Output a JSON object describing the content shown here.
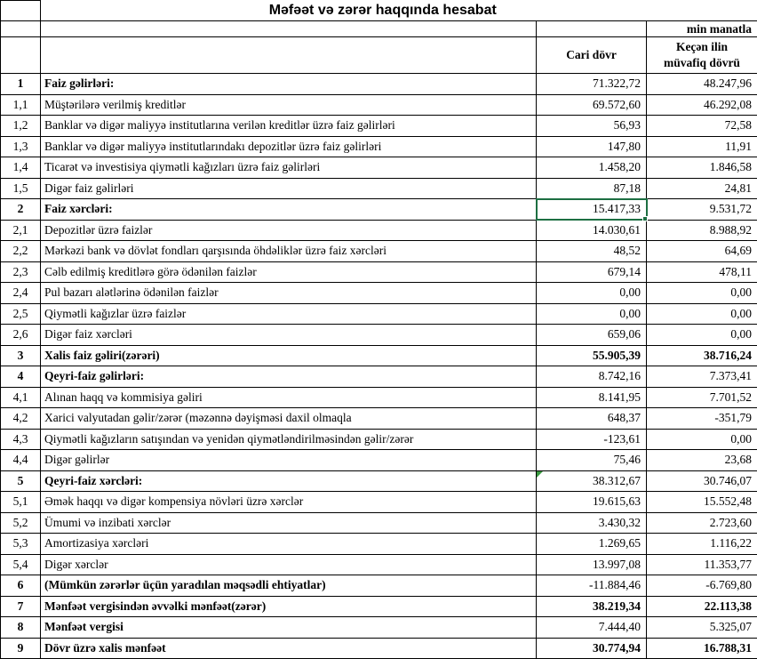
{
  "title": "Məfəət və zərər haqqında hesabat",
  "unit_label": "min manatla",
  "columns": {
    "current": "Cari dövr",
    "previous": "Keçən ilin müvafiq dövrü"
  },
  "colors": {
    "grid_border": "#000000",
    "selection_border": "#1d6f42",
    "flag_triangle": "#3a9a41",
    "background": "#ffffff",
    "text": "#000000"
  },
  "rows": [
    {
      "num": "1",
      "label": "Faiz gəlirləri:",
      "current": "71.322,72",
      "previous": "48.247,96",
      "bold": true
    },
    {
      "num": "1,1",
      "label": "Müştərilərə verilmiş kreditlər",
      "current": "69.572,60",
      "previous": "46.292,08"
    },
    {
      "num": "1,2",
      "label": "Banklar və digər maliyyə institutlarına verilən kreditlər üzrə faiz gəlirləri",
      "current": "56,93",
      "previous": "72,58"
    },
    {
      "num": "1,3",
      "label": "Banklar və digər maliyyə institutlarındakı depozitlər üzrə faiz gəlirləri",
      "current": "147,80",
      "previous": "11,91"
    },
    {
      "num": "1,4",
      "label": "Ticarət və investisiya qiymətli kağızları üzrə faiz gəlirləri",
      "current": "1.458,20",
      "previous": "1.846,58"
    },
    {
      "num": "1,5",
      "label": "Digər faiz gəlirləri",
      "current": "87,18",
      "previous": "24,81"
    },
    {
      "num": "2",
      "label": "Faiz xərcləri:",
      "current": "15.417,33",
      "previous": "9.531,72",
      "bold": true,
      "selected": true
    },
    {
      "num": "2,1",
      "label": "Depozitlər üzrə faizlər",
      "current": "14.030,61",
      "previous": "8.988,92"
    },
    {
      "num": "2,2",
      "label": "Mərkəzi bank və dövlət fondları qarşısında öhdəliklər üzrə faiz xərcləri",
      "current": "48,52",
      "previous": "64,69"
    },
    {
      "num": "2,3",
      "label": "Cəlb edilmiş kreditlərə görə ödənilən faizlər",
      "current": "679,14",
      "previous": "478,11"
    },
    {
      "num": "2,4",
      "label": "Pul bazarı alətlərinə ödənilən faizlər",
      "current": "0,00",
      "previous": "0,00"
    },
    {
      "num": "2,5",
      "label": "Qiymətli kağızlar üzrə faizlər",
      "current": "0,00",
      "previous": "0,00"
    },
    {
      "num": "2,6",
      "label": "Digər faiz xərcləri",
      "current": "659,06",
      "previous": "0,00"
    },
    {
      "num": "3",
      "label": "Xalis faiz gəliri(zərəri)",
      "current": "55.905,39",
      "previous": "38.716,24",
      "bold": true,
      "bold_values": true
    },
    {
      "num": "4",
      "label": "Qeyri-faiz gəlirləri:",
      "current": "8.742,16",
      "previous": "7.373,41",
      "bold": true
    },
    {
      "num": "4,1",
      "label": "Alınan haqq və kommisiya gəliri",
      "current": "8.141,95",
      "previous": "7.701,52"
    },
    {
      "num": "4,2",
      "label": "Xarici valyutadan gəlir/zərər (məzənnə dəyişməsi daxil olmaqla",
      "current": "648,37",
      "previous": "-351,79"
    },
    {
      "num": "4,3",
      "label": "Qiymətli kağızların satışından və yenidən qiymətləndirilməsindən gəlir/zərər",
      "current": "-123,61",
      "previous": "0,00"
    },
    {
      "num": "4,4",
      "label": "Digər gəlirlər",
      "current": "75,46",
      "previous": "23,68"
    },
    {
      "num": "5",
      "label": "Qeyri-faiz xərcləri:",
      "current": "38.312,67",
      "previous": "30.746,07",
      "bold": true,
      "flag": true
    },
    {
      "num": "5,1",
      "label": "Əmək haqqı və digər kompensiya növləri üzrə xərclər",
      "current": "19.615,63",
      "previous": "15.552,48"
    },
    {
      "num": "5,2",
      "label": "Ümumi və inzibati xərclər",
      "current": "3.430,32",
      "previous": "2.723,60"
    },
    {
      "num": "5,3",
      "label": "Amortizasiya xərcləri",
      "current": "1.269,65",
      "previous": "1.116,22"
    },
    {
      "num": "5,4",
      "label": "Digər xərclər",
      "current": "13.997,08",
      "previous": "11.353,77"
    },
    {
      "num": "6",
      "label": "(Mümkün zərərlər üçün yaradılan məqsədli ehtiyatlar)",
      "current": "-11.884,46",
      "previous": "-6.769,80",
      "bold": true
    },
    {
      "num": "7",
      "label": "Mənfəət vergisindən əvvəlki mənfəət(zərər)",
      "current": "38.219,34",
      "previous": "22.113,38",
      "bold": true,
      "bold_values": true
    },
    {
      "num": "8",
      "label": "Mənfəət vergisi",
      "current": "7.444,40",
      "previous": "5.325,07",
      "bold": true
    },
    {
      "num": "9",
      "label": "Dövr üzrə xalis mənfəət",
      "current": "30.774,94",
      "previous": "16.788,31",
      "bold": true,
      "bold_values": true
    }
  ]
}
